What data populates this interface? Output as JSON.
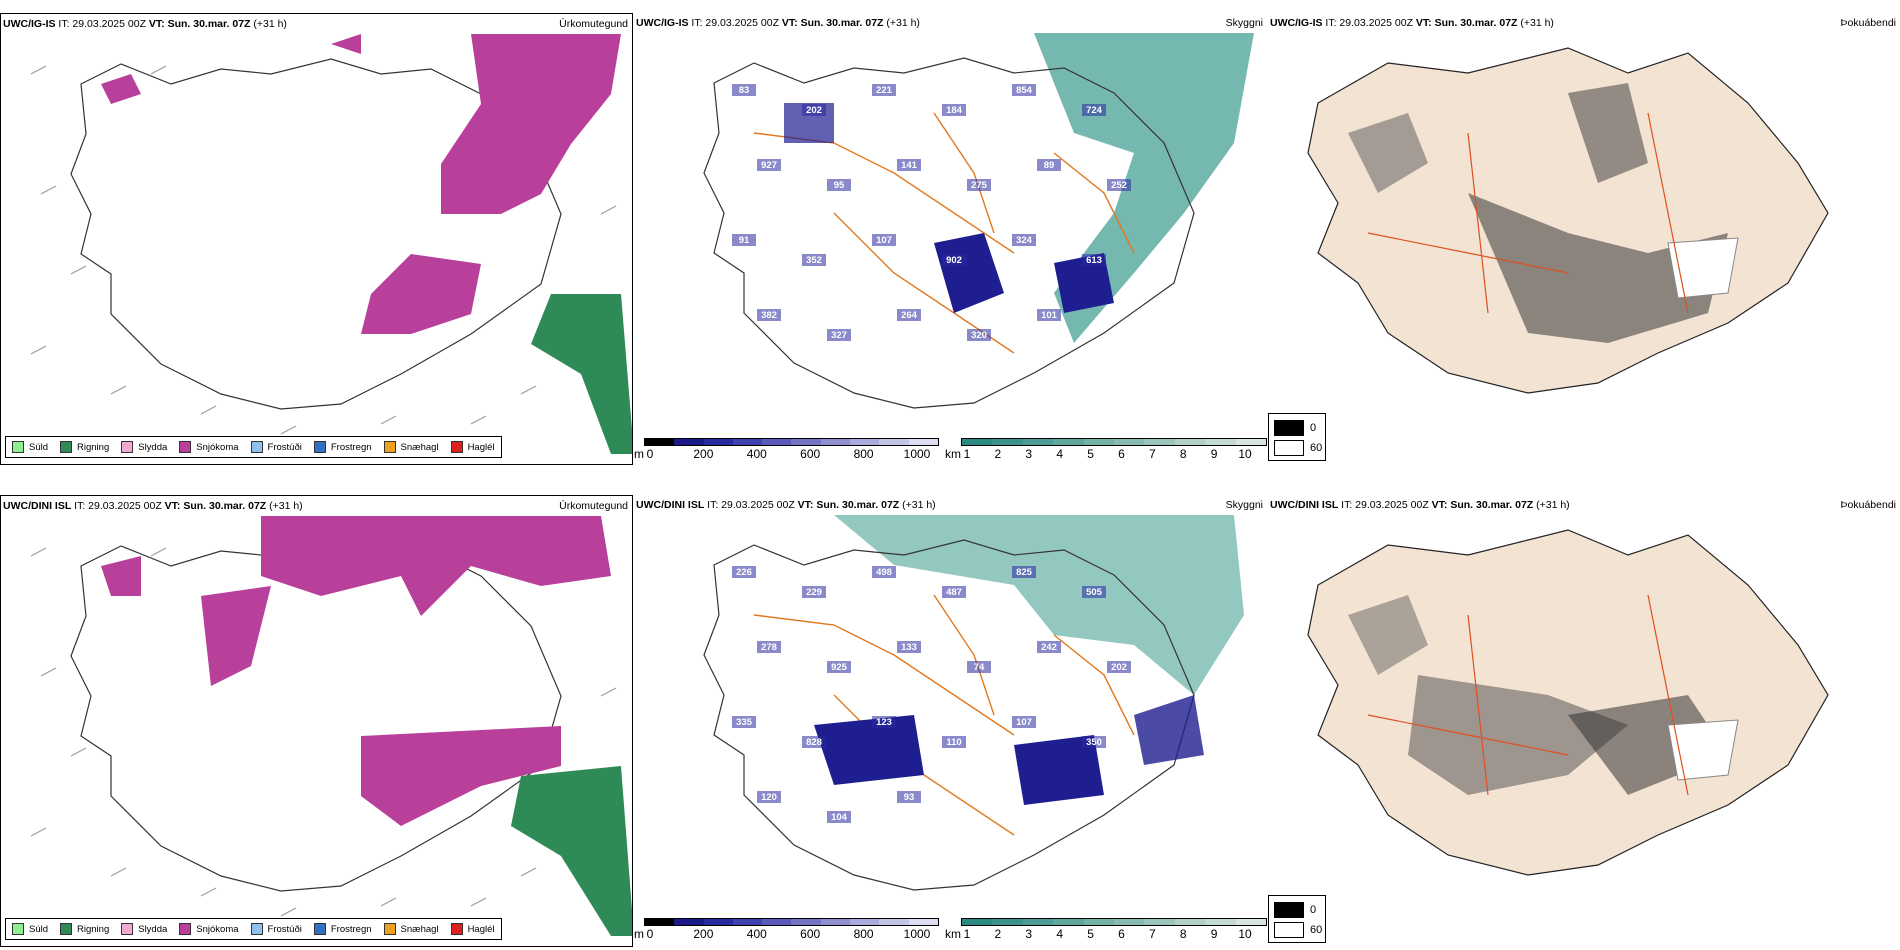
{
  "rows": [
    {
      "model_prefix": "UWC/IG-IS",
      "it_text": " IT: 29.03.2025 00Z ",
      "vt_label": "VT:",
      "vt_value": " Sun. 30.mar. 07Z",
      "lead": " (+31 h)",
      "titles": {
        "precip": "Úrkomutegund",
        "cloud": "Skyggni",
        "fog": "Þokuábendi"
      },
      "cloud_labels": [
        "83",
        "202",
        "221",
        "184",
        "854",
        "724",
        "927",
        "95",
        "141",
        "275",
        "89",
        "252",
        "91",
        "352",
        "107",
        "902",
        "324",
        "613",
        "382",
        "327",
        "264",
        "320",
        "101"
      ]
    },
    {
      "model_prefix": "UWC/DINI ISL",
      "it_text": " IT: 29.03.2025 00Z ",
      "vt_label": "VT:",
      "vt_value": " Sun. 30.mar. 07Z",
      "lead": " (+31 h)",
      "titles": {
        "precip": "Úrkomutegund",
        "cloud": "Skyggni",
        "fog": "Þokuábendi"
      },
      "cloud_labels": [
        "226",
        "229",
        "498",
        "487",
        "825",
        "505",
        "278",
        "925",
        "133",
        "74",
        "242",
        "202",
        "335",
        "828",
        "123",
        "110",
        "107",
        "350",
        "120",
        "104",
        "93"
      ]
    }
  ],
  "precip_legend": [
    {
      "label": "Súld",
      "color": "#90ee90"
    },
    {
      "label": "Rigning",
      "color": "#2e8b57"
    },
    {
      "label": "Slydda",
      "color": "#f0a8d0"
    },
    {
      "label": "Snjókoma",
      "color": "#b8409a"
    },
    {
      "label": "Frostúði",
      "color": "#90c0f0"
    },
    {
      "label": "Frostregn",
      "color": "#3070c0"
    },
    {
      "label": "Snæhagl",
      "color": "#f0a020"
    },
    {
      "label": "Haglél",
      "color": "#e02020"
    }
  ],
  "cloudbase_bar": {
    "unit": "m",
    "ticks": [
      "0",
      "200",
      "400",
      "600",
      "800",
      "1000"
    ],
    "colors": [
      "#000000",
      "#1a1a8a",
      "#2a2aa0",
      "#4040b0",
      "#5a5ab8",
      "#7474c4",
      "#9090d0",
      "#aaaadc",
      "#c4c4e8",
      "#dcdcf2"
    ]
  },
  "visibility_bar": {
    "unit": "km",
    "ticks": [
      "1",
      "2",
      "3",
      "4",
      "5",
      "6",
      "7",
      "8",
      "9",
      "10"
    ],
    "colors": [
      "#2a8a80",
      "#3a948a",
      "#4c9e94",
      "#60a89e",
      "#74b2a8",
      "#88bcb2",
      "#9cc6bc",
      "#b0d0c8",
      "#c4dad4",
      "#d8e6e0"
    ]
  },
  "fog_legend": {
    "high": "0",
    "low": "60"
  },
  "colors": {
    "land_bg": "#f3e3d3",
    "road": "#e07a20",
    "snow": "#b8409a",
    "rain": "#2e8b57",
    "cloud": "#1e1e90",
    "vis": "#3a9a8e"
  }
}
